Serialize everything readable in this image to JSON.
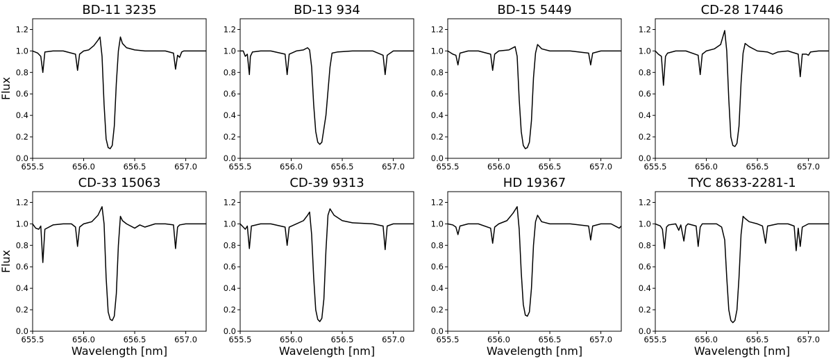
{
  "chart_data": [
    {
      "type": "line",
      "title": "BD-11 3235",
      "xlabel": "",
      "ylabel": "Flux",
      "xlim": [
        655.5,
        657.2
      ],
      "ylim": [
        0.0,
        1.3
      ],
      "xticks": [
        "655.5",
        "656.0",
        "656.5",
        "657.0"
      ],
      "yticks": [
        "0.0",
        "0.2",
        "0.4",
        "0.6",
        "0.8",
        "1.0",
        "1.2"
      ],
      "series": [
        {
          "name": "BD-11 3235",
          "x": [
            655.5,
            655.55,
            655.58,
            655.6,
            655.62,
            655.7,
            655.8,
            655.92,
            655.94,
            655.96,
            656.0,
            656.05,
            656.1,
            656.14,
            656.16,
            656.18,
            656.2,
            656.22,
            656.24,
            656.26,
            656.28,
            656.3,
            656.32,
            656.34,
            656.36,
            656.38,
            656.42,
            656.5,
            656.6,
            656.7,
            656.8,
            656.88,
            656.9,
            656.92,
            656.94,
            656.96,
            656.98,
            657.0,
            657.1,
            657.2
          ],
          "y": [
            1.0,
            0.98,
            0.95,
            0.8,
            0.99,
            1.0,
            1.0,
            0.97,
            0.82,
            0.97,
            1.0,
            1.01,
            1.05,
            1.1,
            1.13,
            0.95,
            0.5,
            0.18,
            0.1,
            0.09,
            0.12,
            0.3,
            0.7,
            1.0,
            1.13,
            1.07,
            1.03,
            1.01,
            1.0,
            1.0,
            1.0,
            0.98,
            0.83,
            0.96,
            0.94,
            0.99,
            1.0,
            1.0,
            1.0,
            1.0
          ]
        }
      ]
    },
    {
      "type": "line",
      "title": "BD-13 934",
      "xlabel": "",
      "ylabel": "",
      "xlim": [
        655.5,
        657.2
      ],
      "ylim": [
        0.0,
        1.3
      ],
      "xticks": [
        "655.5",
        "656.0",
        "656.5",
        "657.0"
      ],
      "yticks": [
        "0.0",
        "0.2",
        "0.4",
        "0.6",
        "0.8",
        "1.0",
        "1.2"
      ],
      "series": [
        {
          "name": "BD-13 934",
          "x": [
            655.5,
            655.53,
            655.55,
            655.57,
            655.59,
            655.6,
            655.62,
            655.7,
            655.8,
            655.94,
            655.96,
            655.98,
            656.05,
            656.12,
            656.16,
            656.18,
            656.2,
            656.22,
            656.24,
            656.26,
            656.28,
            656.3,
            656.34,
            656.38,
            656.4,
            656.45,
            656.6,
            656.8,
            656.9,
            656.92,
            656.94,
            657.0,
            657.1,
            657.2
          ],
          "y": [
            1.0,
            1.0,
            0.95,
            0.97,
            0.78,
            0.95,
            0.99,
            1.0,
            1.0,
            0.97,
            0.78,
            0.97,
            1.0,
            1.01,
            1.03,
            1.01,
            0.85,
            0.5,
            0.25,
            0.15,
            0.13,
            0.15,
            0.4,
            0.85,
            0.98,
            0.99,
            1.0,
            1.0,
            0.96,
            0.78,
            0.96,
            1.0,
            1.0,
            1.0
          ]
        }
      ]
    },
    {
      "type": "line",
      "title": "BD-15 5449",
      "xlabel": "",
      "ylabel": "",
      "xlim": [
        655.5,
        657.2
      ],
      "ylim": [
        0.0,
        1.3
      ],
      "xticks": [
        "655.5",
        "656.0",
        "656.5",
        "657.0"
      ],
      "yticks": [
        "0.0",
        "0.2",
        "0.4",
        "0.6",
        "0.8",
        "1.0",
        "1.2"
      ],
      "series": [
        {
          "name": "BD-15 5449",
          "x": [
            655.5,
            655.55,
            655.58,
            655.6,
            655.62,
            655.7,
            655.8,
            655.92,
            655.94,
            655.96,
            656.0,
            656.1,
            656.16,
            656.18,
            656.2,
            656.22,
            656.24,
            656.26,
            656.28,
            656.3,
            656.32,
            656.34,
            656.36,
            656.38,
            656.42,
            656.5,
            656.7,
            656.88,
            656.9,
            656.92,
            657.0,
            657.1,
            657.2
          ],
          "y": [
            1.0,
            0.97,
            0.96,
            0.87,
            0.98,
            1.0,
            1.0,
            0.97,
            0.82,
            0.97,
            1.0,
            1.01,
            1.04,
            0.95,
            0.55,
            0.25,
            0.12,
            0.09,
            0.1,
            0.15,
            0.35,
            0.75,
            0.98,
            1.06,
            1.02,
            1.0,
            1.0,
            0.98,
            0.87,
            0.98,
            1.0,
            1.0,
            1.0
          ]
        }
      ]
    },
    {
      "type": "line",
      "title": "CD-28 17446",
      "xlabel": "",
      "ylabel": "",
      "xlim": [
        655.5,
        657.2
      ],
      "ylim": [
        0.0,
        1.3
      ],
      "xticks": [
        "655.5",
        "656.0",
        "656.5",
        "657.0"
      ],
      "yticks": [
        "0.0",
        "0.2",
        "0.4",
        "0.6",
        "0.8",
        "1.0",
        "1.2"
      ],
      "series": [
        {
          "name": "CD-28 17446",
          "x": [
            655.5,
            655.53,
            655.56,
            655.58,
            655.6,
            655.62,
            655.7,
            655.8,
            655.92,
            655.94,
            655.96,
            656.0,
            656.08,
            656.14,
            656.18,
            656.2,
            656.22,
            656.24,
            656.26,
            656.28,
            656.3,
            656.32,
            656.34,
            656.36,
            656.38,
            656.42,
            656.5,
            656.6,
            656.65,
            656.7,
            656.8,
            656.9,
            656.92,
            656.94,
            656.98,
            657.0,
            657.02,
            657.1,
            657.2
          ],
          "y": [
            1.0,
            0.97,
            0.95,
            0.68,
            0.95,
            0.98,
            1.0,
            1.0,
            0.96,
            0.78,
            0.97,
            1.0,
            1.02,
            1.06,
            1.19,
            1.0,
            0.55,
            0.2,
            0.12,
            0.11,
            0.14,
            0.3,
            0.7,
            0.98,
            1.07,
            1.04,
            1.0,
            0.99,
            0.97,
            0.99,
            1.0,
            0.97,
            0.76,
            0.97,
            0.97,
            0.96,
            0.99,
            1.0,
            1.0
          ]
        }
      ]
    },
    {
      "type": "line",
      "title": "CD-33 15063",
      "xlabel": "Wavelength [nm]",
      "ylabel": "Flux",
      "xlim": [
        655.5,
        657.2
      ],
      "ylim": [
        0.0,
        1.3
      ],
      "xticks": [
        "655.5",
        "656.0",
        "656.5",
        "657.0"
      ],
      "yticks": [
        "0.0",
        "0.2",
        "0.4",
        "0.6",
        "0.8",
        "1.0",
        "1.2"
      ],
      "series": [
        {
          "name": "CD-33 15063",
          "x": [
            655.5,
            655.53,
            655.56,
            655.58,
            655.6,
            655.62,
            655.7,
            655.8,
            655.88,
            655.92,
            655.94,
            655.96,
            656.0,
            656.08,
            656.14,
            656.18,
            656.2,
            656.22,
            656.24,
            656.26,
            656.28,
            656.3,
            656.32,
            656.34,
            656.36,
            656.38,
            656.42,
            656.5,
            656.55,
            656.6,
            656.7,
            656.8,
            656.88,
            656.9,
            656.92,
            656.94,
            657.0,
            657.1,
            657.2
          ],
          "y": [
            1.0,
            0.96,
            0.95,
            0.98,
            0.64,
            0.95,
            0.99,
            1.0,
            1.0,
            0.97,
            0.79,
            0.97,
            1.0,
            1.02,
            1.08,
            1.16,
            1.0,
            0.5,
            0.18,
            0.11,
            0.1,
            0.14,
            0.35,
            0.8,
            1.07,
            1.03,
            1.0,
            0.96,
            0.99,
            0.97,
            1.0,
            1.0,
            0.99,
            0.77,
            0.97,
            0.99,
            1.0,
            1.0,
            1.0
          ]
        }
      ]
    },
    {
      "type": "line",
      "title": "CD-39 9313",
      "xlabel": "Wavelength [nm]",
      "ylabel": "",
      "xlim": [
        655.5,
        657.2
      ],
      "ylim": [
        0.0,
        1.3
      ],
      "xticks": [
        "655.5",
        "656.0",
        "656.5",
        "657.0"
      ],
      "yticks": [
        "0.0",
        "0.2",
        "0.4",
        "0.6",
        "0.8",
        "1.0",
        "1.2"
      ],
      "series": [
        {
          "name": "CD-39 9313",
          "x": [
            655.5,
            655.53,
            655.55,
            655.57,
            655.59,
            655.61,
            655.7,
            655.8,
            655.94,
            655.96,
            655.98,
            656.05,
            656.12,
            656.16,
            656.18,
            656.2,
            656.22,
            656.24,
            656.26,
            656.28,
            656.3,
            656.32,
            656.34,
            656.36,
            656.38,
            656.42,
            656.5,
            656.6,
            656.8,
            656.9,
            656.92,
            656.94,
            657.0,
            657.1,
            657.2
          ],
          "y": [
            1.0,
            0.97,
            0.95,
            0.98,
            0.77,
            0.98,
            1.0,
            1.0,
            0.97,
            0.8,
            0.97,
            1.0,
            1.03,
            1.08,
            1.11,
            0.9,
            0.5,
            0.2,
            0.11,
            0.09,
            0.12,
            0.3,
            0.75,
            1.08,
            1.14,
            1.08,
            1.03,
            1.01,
            1.0,
            0.98,
            0.76,
            0.98,
            1.0,
            1.0,
            1.0
          ]
        }
      ]
    },
    {
      "type": "line",
      "title": "HD 19367",
      "xlabel": "Wavelength [nm]",
      "ylabel": "",
      "xlim": [
        655.5,
        657.2
      ],
      "ylim": [
        0.0,
        1.3
      ],
      "xticks": [
        "655.5",
        "656.0",
        "656.5",
        "657.0"
      ],
      "yticks": [
        "0.0",
        "0.2",
        "0.4",
        "0.6",
        "0.8",
        "1.0",
        "1.2"
      ],
      "series": [
        {
          "name": "HD 19367",
          "x": [
            655.5,
            655.55,
            655.58,
            655.6,
            655.62,
            655.7,
            655.8,
            655.92,
            655.94,
            655.96,
            656.0,
            656.08,
            656.14,
            656.18,
            656.2,
            656.22,
            656.24,
            656.26,
            656.28,
            656.3,
            656.32,
            656.34,
            656.36,
            656.38,
            656.42,
            656.5,
            656.7,
            656.88,
            656.9,
            656.92,
            657.0,
            657.1,
            657.18,
            657.2
          ],
          "y": [
            1.0,
            0.99,
            0.97,
            0.9,
            0.98,
            1.0,
            1.0,
            0.96,
            0.82,
            0.97,
            1.0,
            1.03,
            1.1,
            1.16,
            0.95,
            0.55,
            0.25,
            0.15,
            0.14,
            0.18,
            0.4,
            0.8,
            1.02,
            1.08,
            1.02,
            1.0,
            1.0,
            0.98,
            0.85,
            0.98,
            1.0,
            1.0,
            0.96,
            0.98
          ]
        }
      ]
    },
    {
      "type": "line",
      "title": "TYC 8633-2281-1",
      "xlabel": "Wavelength [nm]",
      "ylabel": "",
      "xlim": [
        655.5,
        657.2
      ],
      "ylim": [
        0.0,
        1.3
      ],
      "xticks": [
        "655.5",
        "656.0",
        "656.5",
        "657.0"
      ],
      "yticks": [
        "0.0",
        "0.2",
        "0.4",
        "0.6",
        "0.8",
        "1.0",
        "1.2"
      ],
      "series": [
        {
          "name": "TYC 8633-2281-1",
          "x": [
            655.5,
            655.55,
            655.57,
            655.59,
            655.61,
            655.63,
            655.7,
            655.73,
            655.75,
            655.78,
            655.8,
            655.82,
            655.9,
            655.92,
            655.94,
            655.96,
            656.0,
            656.1,
            656.15,
            656.18,
            656.2,
            656.22,
            656.24,
            656.26,
            656.28,
            656.3,
            656.32,
            656.34,
            656.36,
            656.38,
            656.42,
            656.5,
            656.55,
            656.58,
            656.6,
            656.7,
            656.8,
            656.86,
            656.88,
            656.9,
            656.92,
            656.94,
            657.0,
            657.1,
            657.2
          ],
          "y": [
            1.0,
            0.98,
            0.95,
            0.77,
            0.97,
            0.99,
            1.0,
            0.94,
            0.99,
            0.84,
            0.98,
            1.0,
            0.98,
            0.79,
            0.97,
            1.0,
            1.0,
            1.0,
            0.97,
            0.85,
            0.5,
            0.2,
            0.1,
            0.08,
            0.1,
            0.2,
            0.5,
            0.9,
            1.07,
            1.05,
            1.02,
            1.0,
            0.98,
            0.82,
            0.98,
            1.0,
            1.0,
            0.98,
            0.75,
            0.96,
            0.79,
            0.97,
            1.0,
            1.0,
            1.0
          ]
        }
      ]
    }
  ]
}
